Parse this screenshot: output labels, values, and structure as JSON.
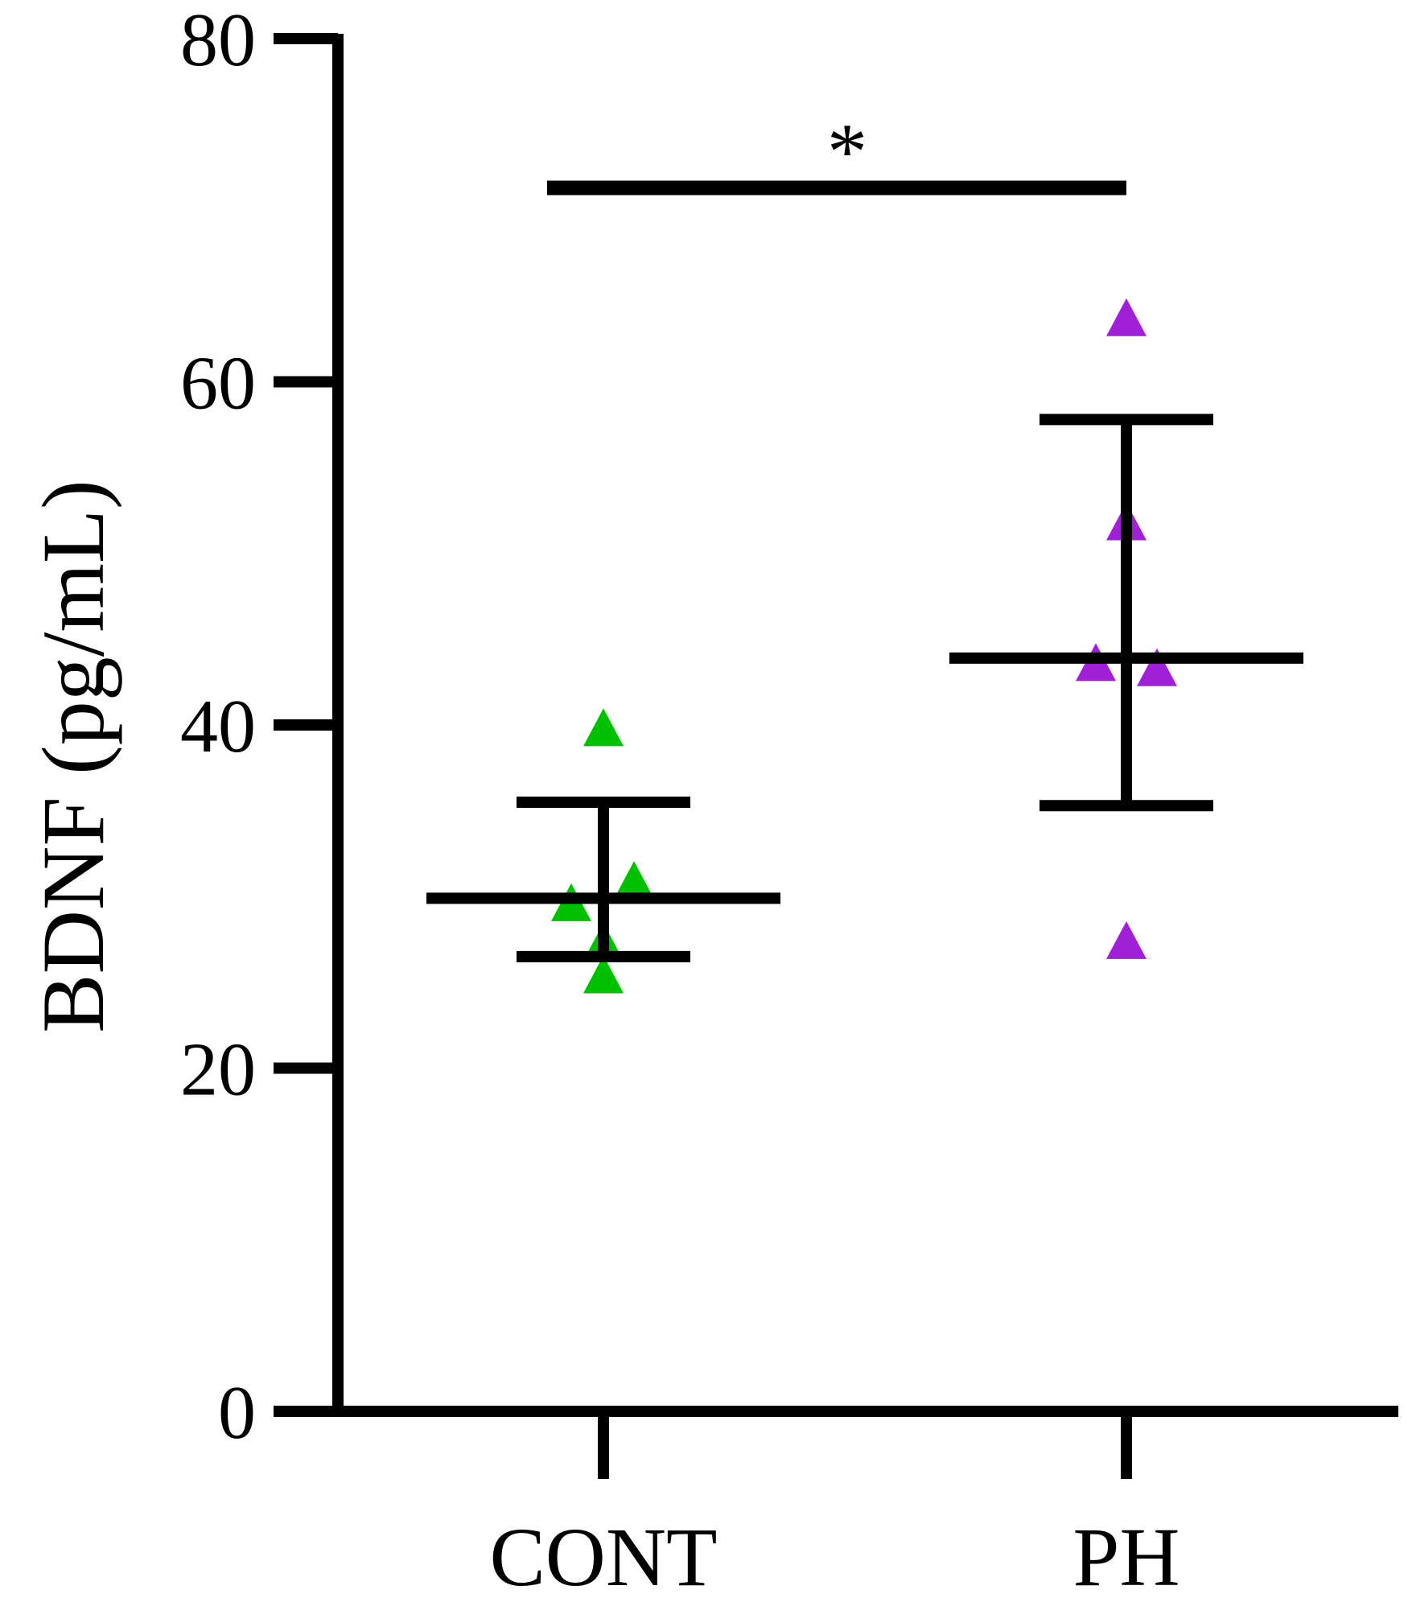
{
  "chart_data": {
    "type": "scatter",
    "title": "",
    "xlabel": "",
    "ylabel": "BDNF (pg/mL)",
    "ylim": [
      0,
      80
    ],
    "yticks": [
      "0",
      "20",
      "40",
      "60",
      "80"
    ],
    "categories": [
      "CONT",
      "PH"
    ],
    "grid": false,
    "legend": "none",
    "series": [
      {
        "category": "CONT",
        "color": "#00c000",
        "marker": "triangle",
        "points": [
          39.7,
          30.8,
          29.5,
          27.2,
          25.3
        ],
        "mean": 29.9,
        "error": [
          26.5,
          35.5
        ]
      },
      {
        "category": "PH",
        "color": "#a020d8",
        "marker": "triangle",
        "points": [
          63.6,
          51.7,
          43.5,
          43.2,
          27.3
        ],
        "mean": 43.9,
        "error": [
          35.3,
          57.8
        ]
      }
    ],
    "annotations": [
      {
        "text": "*",
        "from": "CONT",
        "to": "PH",
        "y": 71.3
      }
    ]
  }
}
